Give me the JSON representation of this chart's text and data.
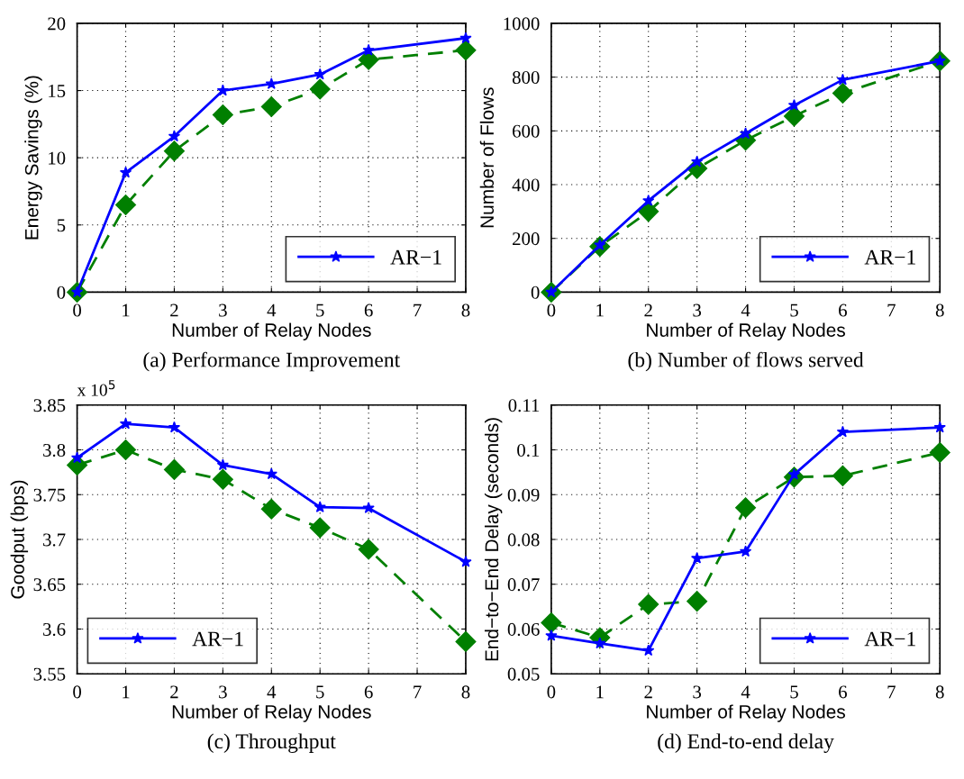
{
  "chart_data": [
    {
      "type": "line",
      "title": "(a) Performance Improvement",
      "xlabel": "Number of Relay Nodes",
      "ylabel": "Energy Savings (%)",
      "x": [
        0,
        1,
        2,
        3,
        4,
        5,
        6,
        8
      ],
      "xlim": [
        0,
        8
      ],
      "xticks": [
        0,
        1,
        2,
        3,
        4,
        5,
        6,
        7,
        8
      ],
      "ylim": [
        0,
        20
      ],
      "yticks": [
        0,
        5,
        10,
        15,
        20
      ],
      "grid": true,
      "legend": "bottom right",
      "series": [
        {
          "name": "AR−1",
          "color": "#0000ff",
          "marker": "star",
          "line_style": "solid",
          "values": [
            0,
            8.9,
            11.6,
            15.0,
            15.5,
            16.2,
            18.0,
            18.9
          ]
        },
        {
          "color": "#007f00",
          "marker": "diamond",
          "line_style": "dashed",
          "values": [
            0,
            6.5,
            10.5,
            13.2,
            13.8,
            15.1,
            17.3,
            18.0
          ]
        }
      ]
    },
    {
      "type": "line",
      "title": "(b) Number of flows served",
      "xlabel": "Number of Relay Nodes",
      "ylabel": "Number of Flows",
      "x": [
        0,
        1,
        2,
        3,
        4,
        5,
        6,
        8
      ],
      "xlim": [
        0,
        8
      ],
      "xticks": [
        0,
        1,
        2,
        3,
        4,
        5,
        6,
        7,
        8
      ],
      "ylim": [
        0,
        1000
      ],
      "yticks": [
        0,
        200,
        400,
        600,
        800,
        1000
      ],
      "grid": true,
      "legend": "bottom right",
      "series": [
        {
          "name": "AR−1",
          "color": "#0000ff",
          "marker": "star",
          "line_style": "solid",
          "values": [
            0,
            175,
            340,
            485,
            590,
            695,
            790,
            860
          ]
        },
        {
          "color": "#007f00",
          "marker": "diamond",
          "line_style": "dashed",
          "values": [
            0,
            170,
            300,
            460,
            565,
            655,
            740,
            860
          ]
        }
      ]
    },
    {
      "type": "line",
      "title": "(c) Throughput",
      "xlabel": "Number of Relay Nodes",
      "ylabel": "Goodput (bps)",
      "annotations": [
        "x 10$^{5}$"
      ],
      "x": [
        0,
        1,
        2,
        3,
        4,
        5,
        6,
        8
      ],
      "xlim": [
        0,
        8
      ],
      "xticks": [
        0,
        1,
        2,
        3,
        4,
        5,
        6,
        7,
        8
      ],
      "ylim": [
        3.55,
        3.85
      ],
      "yticks": [
        3.55,
        3.6,
        3.65,
        3.7,
        3.75,
        3.8,
        3.85
      ],
      "grid": true,
      "legend": "bottom left",
      "series": [
        {
          "name": "AR−1",
          "color": "#0000ff",
          "marker": "star",
          "line_style": "solid",
          "values": [
            3.791,
            3.829,
            3.825,
            3.783,
            3.773,
            3.736,
            3.735,
            3.675
          ]
        },
        {
          "color": "#007f00",
          "marker": "diamond",
          "line_style": "dashed",
          "values": [
            3.783,
            3.8,
            3.778,
            3.767,
            3.734,
            3.713,
            3.689,
            3.586
          ]
        }
      ]
    },
    {
      "type": "line",
      "title": "(d) End-to-end delay",
      "xlabel": "Number of Relay Nodes",
      "ylabel": "End−to−End Delay (seconds)",
      "x": [
        0,
        1,
        2,
        3,
        4,
        5,
        6,
        8
      ],
      "xlim": [
        0,
        8
      ],
      "xticks": [
        0,
        1,
        2,
        3,
        4,
        5,
        6,
        7,
        8
      ],
      "ylim": [
        0.05,
        0.11
      ],
      "yticks": [
        0.05,
        0.06,
        0.07,
        0.08,
        0.09,
        0.1,
        0.11
      ],
      "grid": true,
      "legend": "bottom right",
      "series": [
        {
          "name": "AR−1",
          "color": "#0000ff",
          "marker": "star",
          "line_style": "solid",
          "values": [
            0.0585,
            0.0568,
            0.0552,
            0.0758,
            0.0773,
            0.0945,
            0.104,
            0.105
          ]
        },
        {
          "color": "#007f00",
          "marker": "diamond",
          "line_style": "dashed",
          "values": [
            0.0614,
            0.0581,
            0.0655,
            0.0662,
            0.0871,
            0.0939,
            0.0942,
            0.0994
          ]
        }
      ]
    }
  ]
}
